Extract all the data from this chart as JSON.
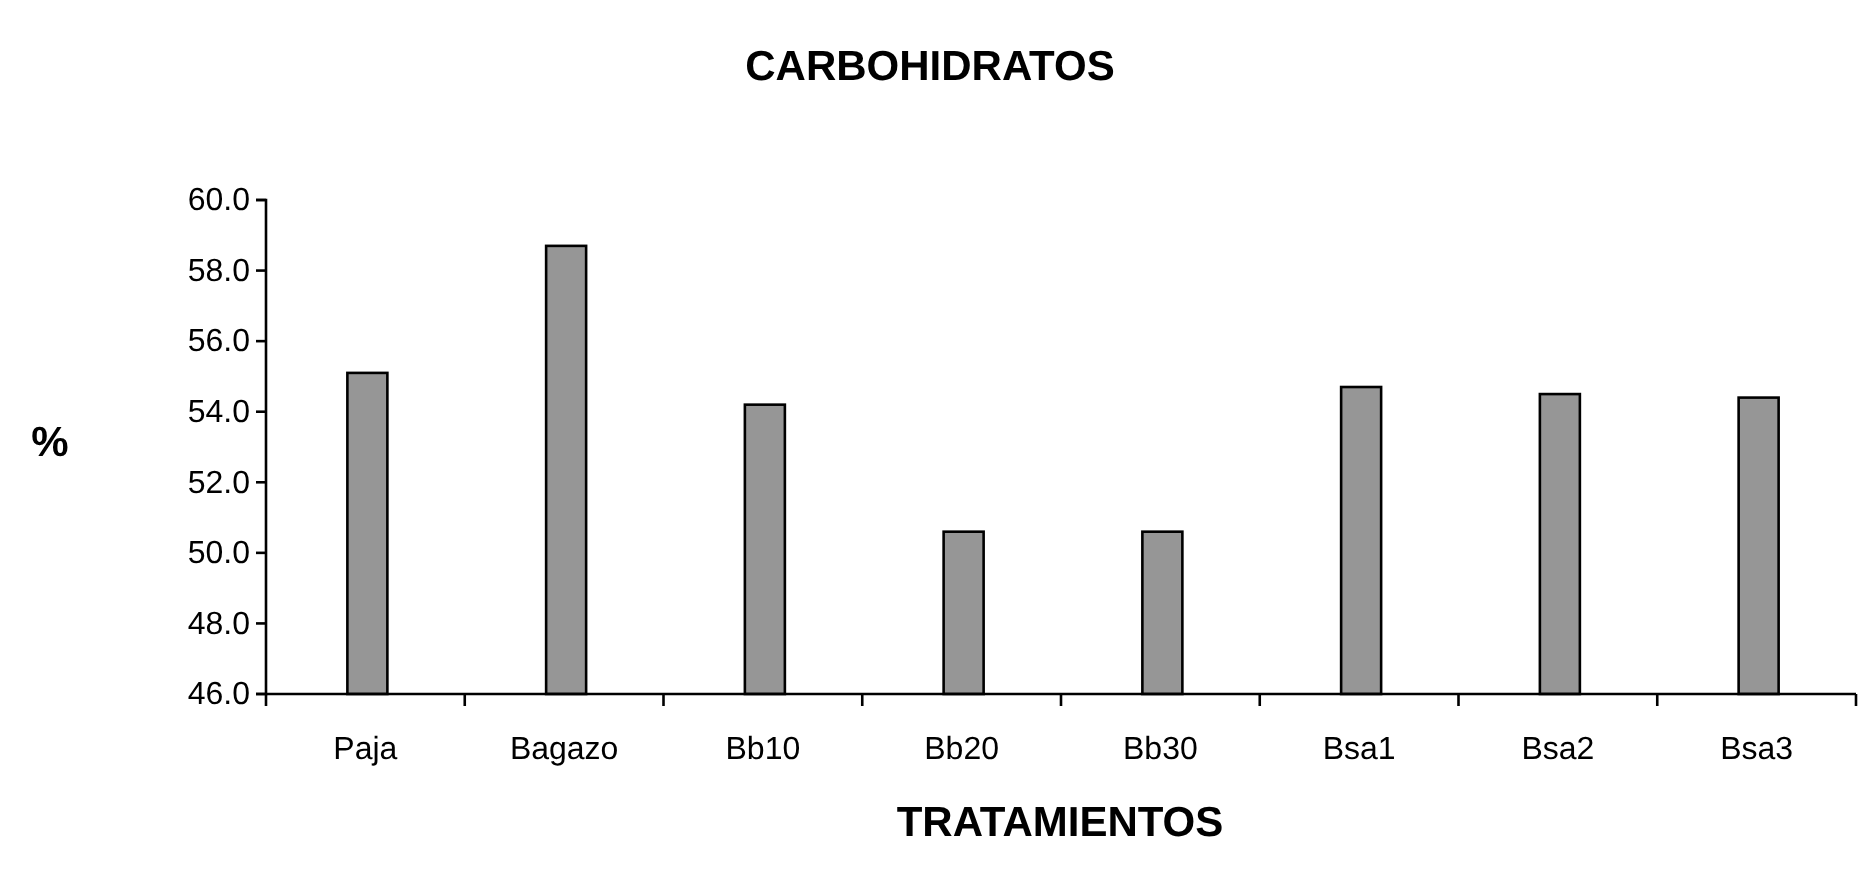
{
  "chart_data": {
    "type": "bar",
    "title": "CARBOHIDRATOS",
    "xlabel": "TRATAMIENTOS",
    "ylabel": "%",
    "categories": [
      "Paja",
      "Bagazo",
      "Bb10",
      "Bb20",
      "Bb30",
      "Bsa1",
      "Bsa2",
      "Bsa3"
    ],
    "values": [
      55.1,
      58.7,
      54.2,
      50.6,
      50.6,
      54.7,
      54.5,
      54.4
    ],
    "color": "#969696",
    "ylim": [
      46,
      60
    ],
    "yticks": [
      {
        "value": 46,
        "label": "46.0"
      },
      {
        "value": 48,
        "label": "48.0"
      },
      {
        "value": 50,
        "label": "50.0"
      },
      {
        "value": 52,
        "label": "52.0"
      },
      {
        "value": 54,
        "label": "54.0"
      },
      {
        "value": 56,
        "label": "56.0"
      },
      {
        "value": 58,
        "label": "58.0"
      },
      {
        "value": 60,
        "label": "60.0"
      }
    ],
    "grid": false
  }
}
